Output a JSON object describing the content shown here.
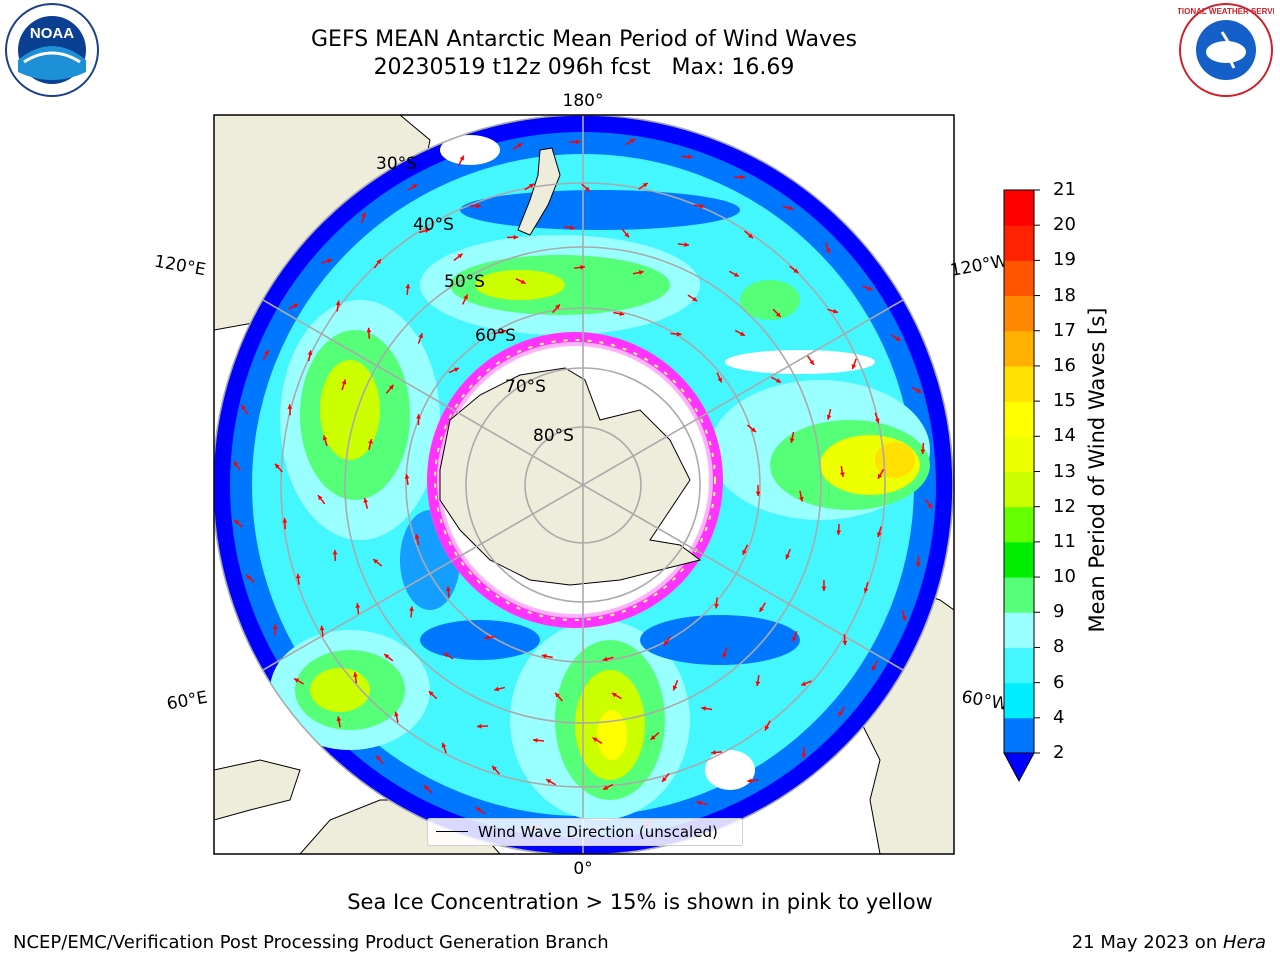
{
  "header": {
    "title_line1": "GEFS MEAN Antarctic Mean Period of Wind Waves",
    "title_line2_run": "20230519 t12z 096h fcst",
    "title_line2_max": "Max: 16.69"
  },
  "logos": {
    "left": "NOAA",
    "right": "NATIONAL WEATHER SERVICE"
  },
  "map": {
    "projection": "south-polar-stereographic",
    "lat_labels": [
      "30°S",
      "40°S",
      "50°S",
      "60°S",
      "70°S",
      "80°S"
    ],
    "lon_labels": {
      "top": "180°",
      "left_upper": "120°E",
      "right_upper": "120°W",
      "left_lower": "60°E",
      "right_lower": "60°W",
      "bottom": "0°"
    },
    "legend_label": "Wind Wave Direction (unscaled)",
    "arrow_color": "#ff0000",
    "land_color": "#eeecda",
    "ice_colors": [
      "#ff33ff",
      "#ffb0ff",
      "#ffff66"
    ]
  },
  "colorbar": {
    "label": "Mean Period of Wind Waves [s]",
    "ticks": [
      "2",
      "4",
      "6",
      "8",
      "9",
      "10",
      "11",
      "12",
      "13",
      "14",
      "15",
      "16",
      "17",
      "18",
      "19",
      "20",
      "21"
    ],
    "colors": [
      "#0077ff",
      "#00eeff",
      "#44f7ff",
      "#99ffff",
      "#55ff77",
      "#00ee00",
      "#66ff00",
      "#ccff00",
      "#eeff00",
      "#ffff00",
      "#ffe000",
      "#ffb000",
      "#ff8800",
      "#ff5500",
      "#ff2200",
      "#ff0000"
    ],
    "extend_color": "#0000ff"
  },
  "annotation": "Sea Ice Concentration > 15% is shown in pink to yellow",
  "footer": {
    "left": "NCEP/EMC/Verification Post Processing Product Generation Branch",
    "right_date": "21 May 2023 on ",
    "right_host": "Hera"
  }
}
